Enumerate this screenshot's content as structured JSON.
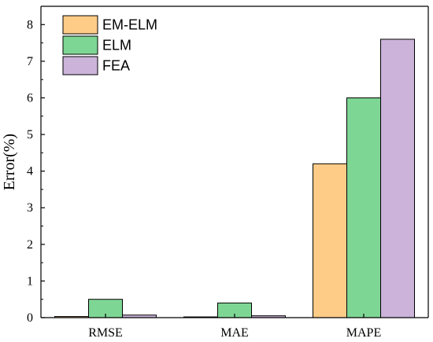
{
  "chart_data": {
    "type": "bar",
    "categories": [
      "RMSE",
      "MAE",
      "MAPE"
    ],
    "series": [
      {
        "name": "EM-ELM",
        "values": [
          0.03,
          0.02,
          4.2
        ],
        "color": "#FFCC88"
      },
      {
        "name": "ELM",
        "values": [
          0.5,
          0.4,
          6.0
        ],
        "color": "#7ED694"
      },
      {
        "name": "FEA",
        "values": [
          0.07,
          0.05,
          7.6
        ],
        "color": "#CBB3DA"
      }
    ],
    "title": "",
    "xlabel": "",
    "ylabel": "Error(%)",
    "ylim": [
      0,
      8.5
    ],
    "yticks": [
      0,
      1,
      2,
      3,
      4,
      5,
      6,
      7,
      8
    ],
    "grid": false,
    "legend_position": "top-left"
  }
}
